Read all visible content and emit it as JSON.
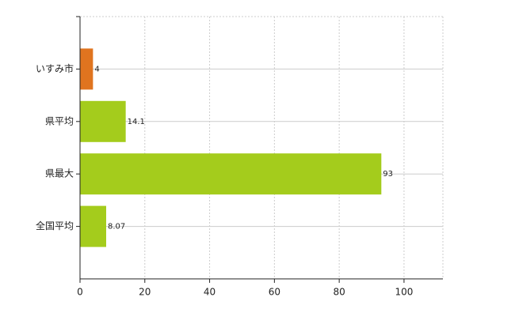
{
  "chart_data": {
    "type": "bar",
    "orientation": "horizontal",
    "categories": [
      "いすみ市",
      "県平均",
      "県最大",
      "全国平均"
    ],
    "values": [
      4,
      14.1,
      93,
      8.07
    ],
    "colors": [
      "#e0741f",
      "#a4cc1c",
      "#a4cc1c",
      "#a4cc1c"
    ],
    "xlim": [
      0,
      112
    ],
    "xticks": [
      0,
      20,
      40,
      60,
      80,
      100
    ],
    "grid": true
  }
}
